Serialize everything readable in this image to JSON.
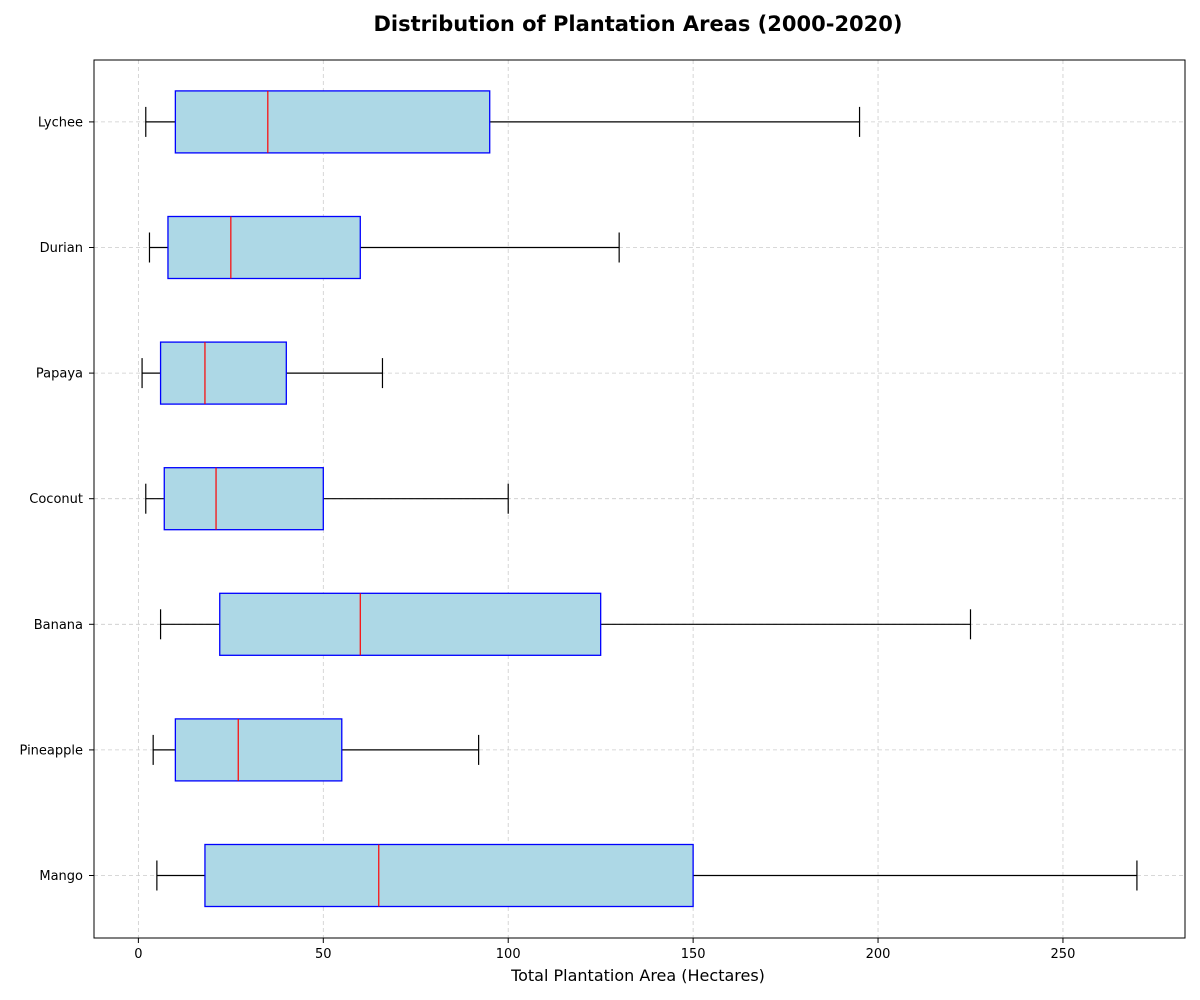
{
  "chart_data": {
    "type": "boxplot",
    "orientation": "horizontal",
    "title": "Distribution of Plantation Areas (2000-2020)",
    "xlabel": "Total Plantation Area (Hectares)",
    "ylabel": "",
    "xlim": [
      -12,
      283
    ],
    "xticks": [
      0,
      50,
      100,
      150,
      200,
      250
    ],
    "xtick_labels": [
      "0",
      "50",
      "100",
      "150",
      "200",
      "250"
    ],
    "grid": true,
    "categories": [
      "Mango",
      "Pineapple",
      "Banana",
      "Coconut",
      "Papaya",
      "Durian",
      "Lychee"
    ],
    "boxes": [
      {
        "category": "Mango",
        "whisker_low": 5,
        "q1": 18,
        "median": 65,
        "q3": 150,
        "whisker_high": 270
      },
      {
        "category": "Pineapple",
        "whisker_low": 4,
        "q1": 10,
        "median": 27,
        "q3": 55,
        "whisker_high": 92
      },
      {
        "category": "Banana",
        "whisker_low": 6,
        "q1": 22,
        "median": 60,
        "q3": 125,
        "whisker_high": 225
      },
      {
        "category": "Coconut",
        "whisker_low": 2,
        "q1": 7,
        "median": 21,
        "q3": 50,
        "whisker_high": 100
      },
      {
        "category": "Papaya",
        "whisker_low": 1,
        "q1": 6,
        "median": 18,
        "q3": 40,
        "whisker_high": 66
      },
      {
        "category": "Durian",
        "whisker_low": 3,
        "q1": 8,
        "median": 25,
        "q3": 60,
        "whisker_high": 130
      },
      {
        "category": "Lychee",
        "whisker_low": 2,
        "q1": 10,
        "median": 35,
        "q3": 95,
        "whisker_high": 195
      }
    ],
    "colors": {
      "box_fill": "#add8e6",
      "box_edge": "#0000ff",
      "median": "#ff0000",
      "whisker": "#000000",
      "grid": "#cccccc"
    }
  }
}
